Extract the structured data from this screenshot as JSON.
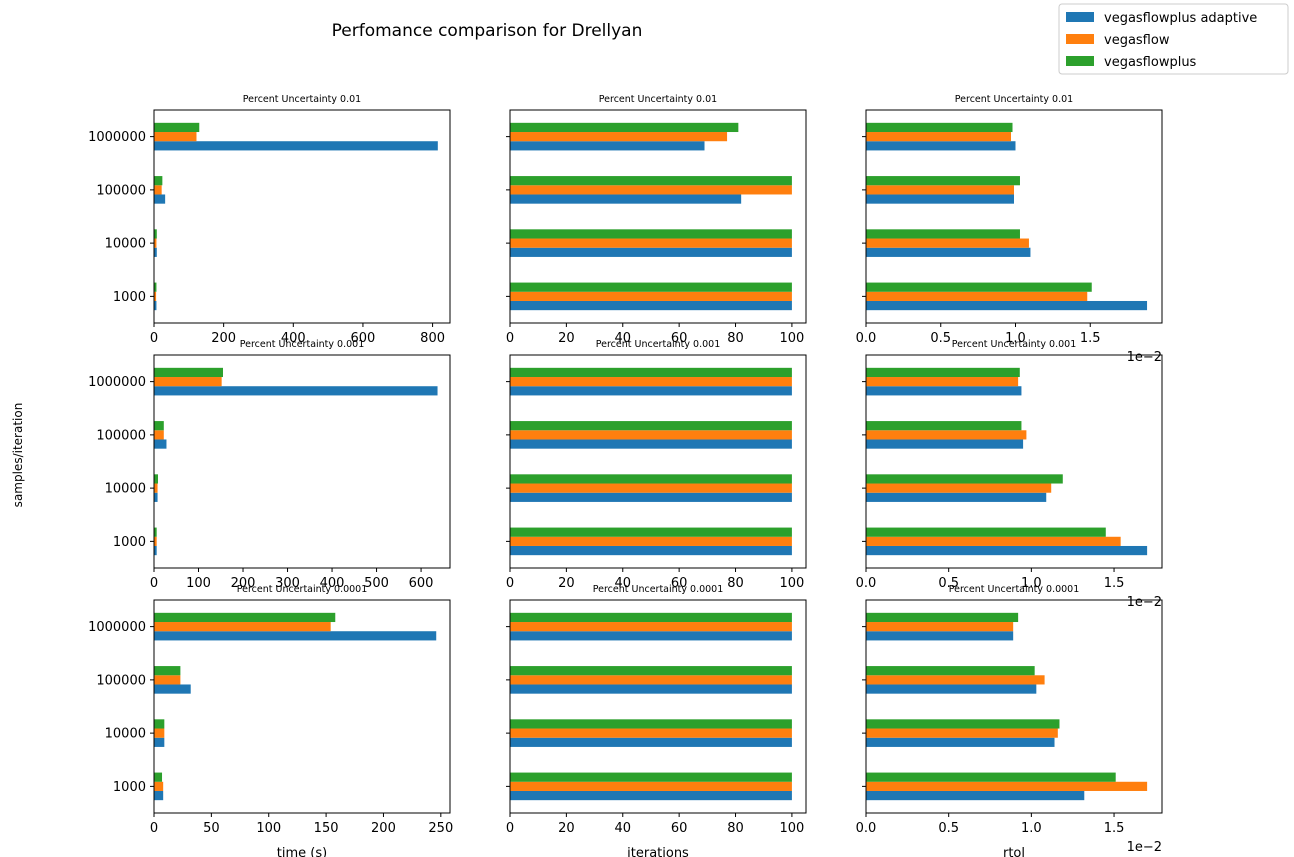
{
  "chart_data": {
    "type": "bar",
    "orientation": "horizontal",
    "title": "Perfomance comparison for Drellyan",
    "ylabel": "samples/iteration",
    "categories": [
      "1000",
      "10000",
      "100000",
      "1000000"
    ],
    "legend": {
      "placement": "top-right",
      "entries": [
        "vegasflowplus adaptive",
        "vegasflow",
        "vegasflowplus"
      ]
    },
    "colors": [
      "#1f77b4",
      "#ff7f0e",
      "#2ca02c"
    ],
    "columns": [
      {
        "xlabel": "time (s)",
        "offset_text": ""
      },
      {
        "xlabel": "iterations",
        "offset_text": ""
      },
      {
        "xlabel": "rtol",
        "offset_text": "1e−2"
      }
    ],
    "panels": [
      {
        "title": "Percent Uncertainty 0.01",
        "row": 0,
        "col": 0,
        "xlim": [
          0,
          850
        ],
        "xticks": [
          0,
          200,
          400,
          600,
          800
        ],
        "xticklabels": [
          "0",
          "200",
          "400",
          "600",
          "800"
        ],
        "series": [
          {
            "name": "vegasflowplus adaptive",
            "values": [
              7,
              8,
              32,
              815
            ]
          },
          {
            "name": "vegasflow",
            "values": [
              6,
              7,
              22,
              122
            ]
          },
          {
            "name": "vegasflowplus",
            "values": [
              7,
              8,
              24,
              130
            ]
          }
        ]
      },
      {
        "title": "Percent Uncertainty 0.01",
        "row": 0,
        "col": 1,
        "xlim": [
          0,
          105
        ],
        "xticks": [
          0,
          20,
          40,
          60,
          80,
          100
        ],
        "xticklabels": [
          "0",
          "20",
          "40",
          "60",
          "80",
          "100"
        ],
        "series": [
          {
            "name": "vegasflowplus adaptive",
            "values": [
              100,
              100,
              82,
              69
            ]
          },
          {
            "name": "vegasflow",
            "values": [
              100,
              100,
              100,
              77
            ]
          },
          {
            "name": "vegasflowplus",
            "values": [
              100,
              100,
              100,
              81
            ]
          }
        ]
      },
      {
        "title": "Percent Uncertainty 0.01",
        "row": 0,
        "col": 2,
        "xlim": [
          0,
          1.98
        ],
        "xticks": [
          0,
          0.5,
          1.0,
          1.5
        ],
        "xticklabels": [
          "0.0",
          "0.5",
          "1.0",
          "1.5"
        ],
        "series": [
          {
            "name": "vegasflowplus adaptive",
            "values": [
              1.88,
              1.1,
              0.99,
              1.0
            ]
          },
          {
            "name": "vegasflow",
            "values": [
              1.48,
              1.09,
              0.99,
              0.97
            ]
          },
          {
            "name": "vegasflowplus",
            "values": [
              1.51,
              1.03,
              1.03,
              0.98
            ]
          }
        ]
      },
      {
        "title": "Percent Uncertainty 0.001",
        "row": 1,
        "col": 0,
        "xlim": [
          0,
          665
        ],
        "xticks": [
          0,
          100,
          200,
          300,
          400,
          500,
          600
        ],
        "xticklabels": [
          "0",
          "100",
          "200",
          "300",
          "400",
          "500",
          "600"
        ],
        "series": [
          {
            "name": "vegasflowplus adaptive",
            "values": [
              6,
              8,
              28,
              637
            ]
          },
          {
            "name": "vegasflow",
            "values": [
              6,
              8,
              22,
              152
            ]
          },
          {
            "name": "vegasflowplus",
            "values": [
              6,
              9,
              22,
              155
            ]
          }
        ]
      },
      {
        "title": "Percent Uncertainty 0.001",
        "row": 1,
        "col": 1,
        "xlim": [
          0,
          105
        ],
        "xticks": [
          0,
          20,
          40,
          60,
          80,
          100
        ],
        "xticklabels": [
          "0",
          "20",
          "40",
          "60",
          "80",
          "100"
        ],
        "series": [
          {
            "name": "vegasflowplus adaptive",
            "values": [
              100,
              100,
              100,
              100
            ]
          },
          {
            "name": "vegasflow",
            "values": [
              100,
              100,
              100,
              100
            ]
          },
          {
            "name": "vegasflowplus",
            "values": [
              100,
              100,
              100,
              100
            ]
          }
        ]
      },
      {
        "title": "Percent Uncertainty 0.001",
        "row": 1,
        "col": 2,
        "xlim": [
          0,
          1.79
        ],
        "xticks": [
          0,
          0.5,
          1.0,
          1.5
        ],
        "xticklabels": [
          "0.0",
          "0.5",
          "1.0",
          "1.5"
        ],
        "series": [
          {
            "name": "vegasflowplus adaptive",
            "values": [
              1.7,
              1.09,
              0.95,
              0.94
            ]
          },
          {
            "name": "vegasflow",
            "values": [
              1.54,
              1.12,
              0.97,
              0.92
            ]
          },
          {
            "name": "vegasflowplus",
            "values": [
              1.45,
              1.19,
              0.94,
              0.93
            ]
          }
        ]
      },
      {
        "title": "Percent Uncertainty 0.0001",
        "row": 2,
        "col": 0,
        "xlim": [
          0,
          258
        ],
        "xticks": [
          0,
          50,
          100,
          150,
          200,
          250
        ],
        "xticklabels": [
          "0",
          "50",
          "100",
          "150",
          "200",
          "250"
        ],
        "series": [
          {
            "name": "vegasflowplus adaptive",
            "values": [
              8,
              9,
              32,
              246
            ]
          },
          {
            "name": "vegasflow",
            "values": [
              8,
              9,
              23,
              154
            ]
          },
          {
            "name": "vegasflowplus",
            "values": [
              7,
              9,
              23,
              158
            ]
          }
        ]
      },
      {
        "title": "Percent Uncertainty 0.0001",
        "row": 2,
        "col": 1,
        "xlim": [
          0,
          105
        ],
        "xticks": [
          0,
          20,
          40,
          60,
          80,
          100
        ],
        "xticklabels": [
          "0",
          "20",
          "40",
          "60",
          "80",
          "100"
        ],
        "series": [
          {
            "name": "vegasflowplus adaptive",
            "values": [
              100,
              100,
              100,
              100
            ]
          },
          {
            "name": "vegasflow",
            "values": [
              100,
              100,
              100,
              100
            ]
          },
          {
            "name": "vegasflowplus",
            "values": [
              100,
              100,
              100,
              100
            ]
          }
        ]
      },
      {
        "title": "Percent Uncertainty 0.0001",
        "row": 2,
        "col": 2,
        "xlim": [
          0,
          1.79
        ],
        "xticks": [
          0,
          0.5,
          1.0,
          1.5
        ],
        "xticklabels": [
          "0.0",
          "0.5",
          "1.0",
          "1.5"
        ],
        "series": [
          {
            "name": "vegasflowplus adaptive",
            "values": [
              1.32,
              1.14,
              1.03,
              0.89
            ]
          },
          {
            "name": "vegasflow",
            "values": [
              1.7,
              1.16,
              1.08,
              0.89
            ]
          },
          {
            "name": "vegasflowplus",
            "values": [
              1.51,
              1.17,
              1.02,
              0.92
            ]
          }
        ]
      }
    ]
  }
}
